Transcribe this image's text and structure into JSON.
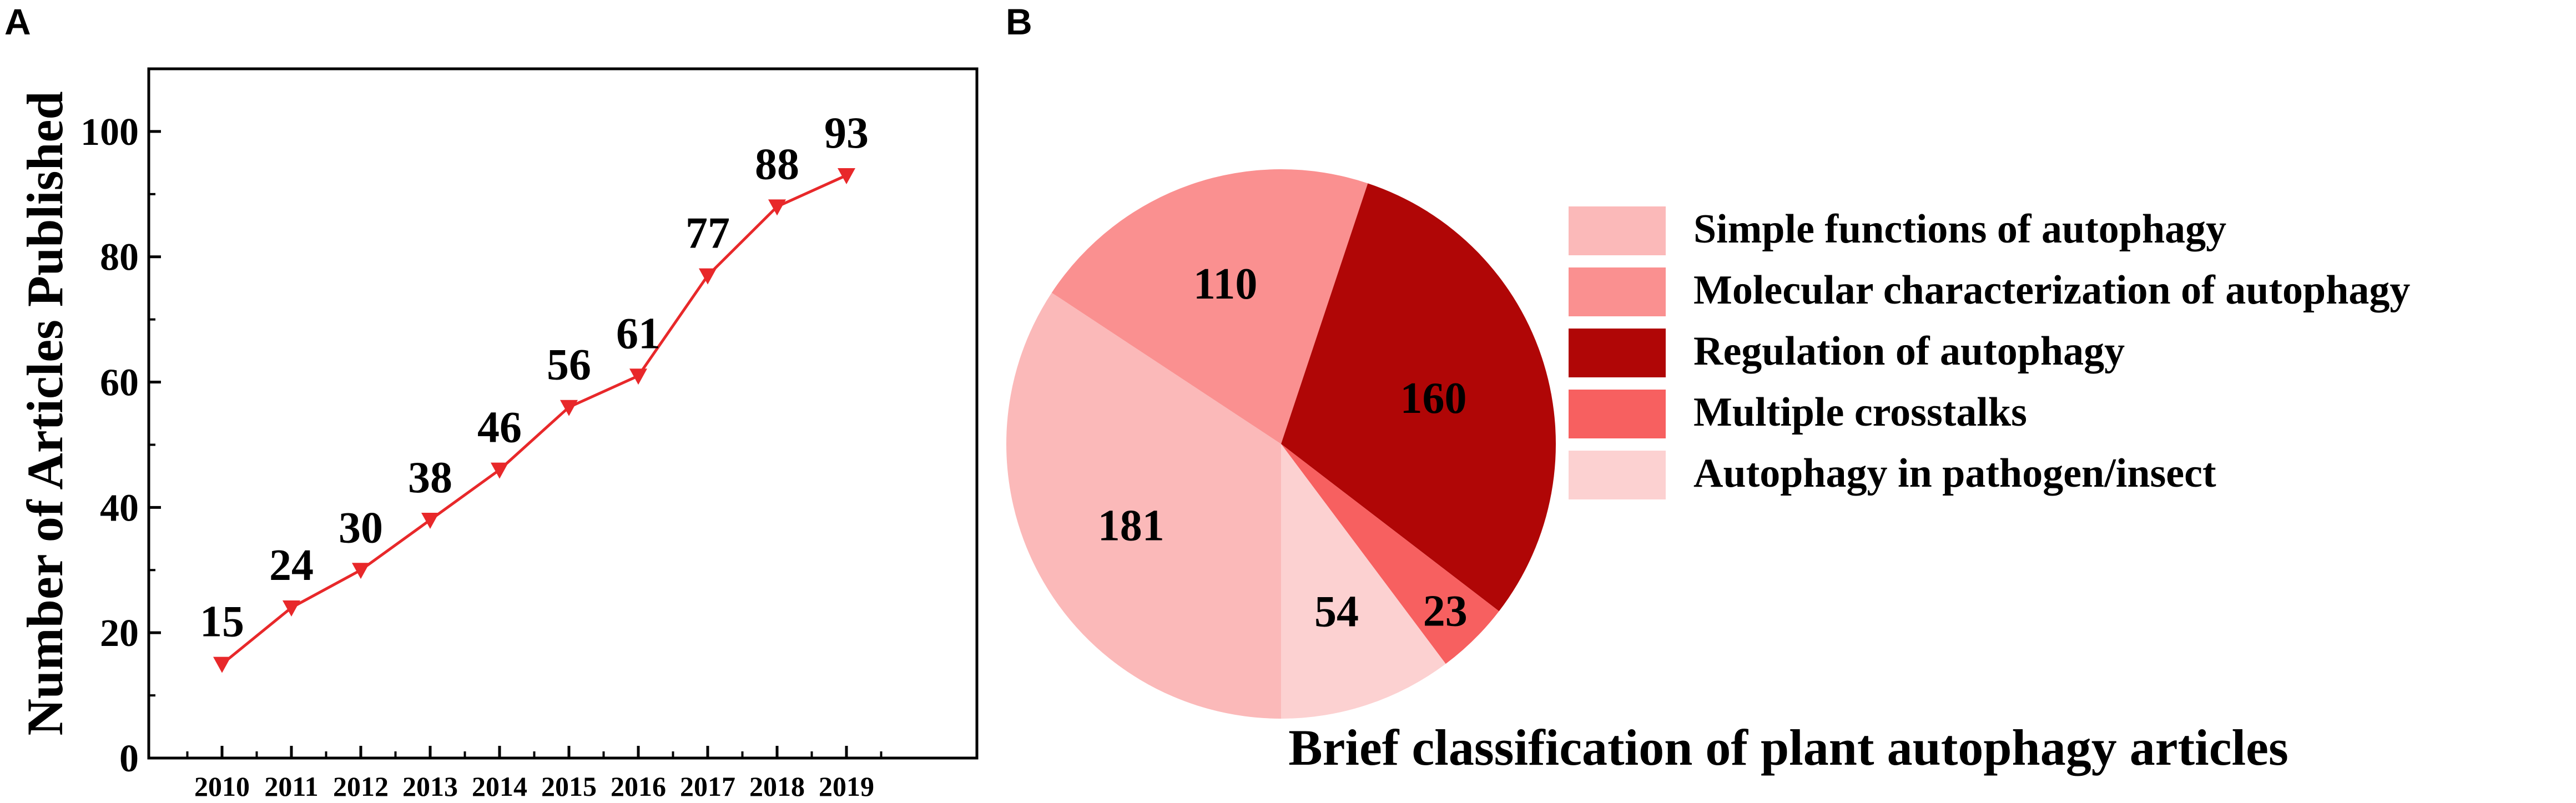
{
  "panel_labels": [
    "A",
    "B"
  ],
  "colors": {
    "line": "#e8282a",
    "pie": [
      "#fbb9b9",
      "#fa9090",
      "#b00606",
      "#f76060",
      "#fcd1d1"
    ]
  },
  "chart_data": [
    {
      "type": "line",
      "title": "",
      "xlabel": "",
      "ylabel": "Number of Articles Published",
      "categories": [
        "2010",
        "2011",
        "2012",
        "2013",
        "2014",
        "2015",
        "2016",
        "2017",
        "2018",
        "2019"
      ],
      "series": [
        {
          "values": [
            15,
            24,
            30,
            38,
            46,
            56,
            61,
            77,
            88,
            93
          ],
          "marker": "triangle-down"
        }
      ],
      "data_labels": [
        "15",
        "24",
        "30",
        "38",
        "46",
        "56",
        "61",
        "77",
        "88",
        "93"
      ],
      "ylim": [
        0,
        110
      ],
      "yticks": [
        0,
        20,
        40,
        60,
        80,
        100
      ],
      "ytick_labels": [
        "0",
        "20",
        "40",
        "60",
        "80",
        "100"
      ],
      "grid": false
    },
    {
      "type": "pie",
      "title": "Brief classification of plant autophagy articles",
      "legend": "right",
      "slices": [
        {
          "label": "Simple functions of autophagy",
          "value": 181,
          "value_label": "181"
        },
        {
          "label": "Molecular characterization of autophagy",
          "value": 110,
          "value_label": "110"
        },
        {
          "label": "Regulation of autophagy",
          "value": 160,
          "value_label": "160"
        },
        {
          "label": "Multiple crosstalks",
          "value": 23,
          "value_label": "23"
        },
        {
          "label": "Autophagy in pathogen/insect",
          "value": 54,
          "value_label": "54"
        }
      ]
    }
  ]
}
